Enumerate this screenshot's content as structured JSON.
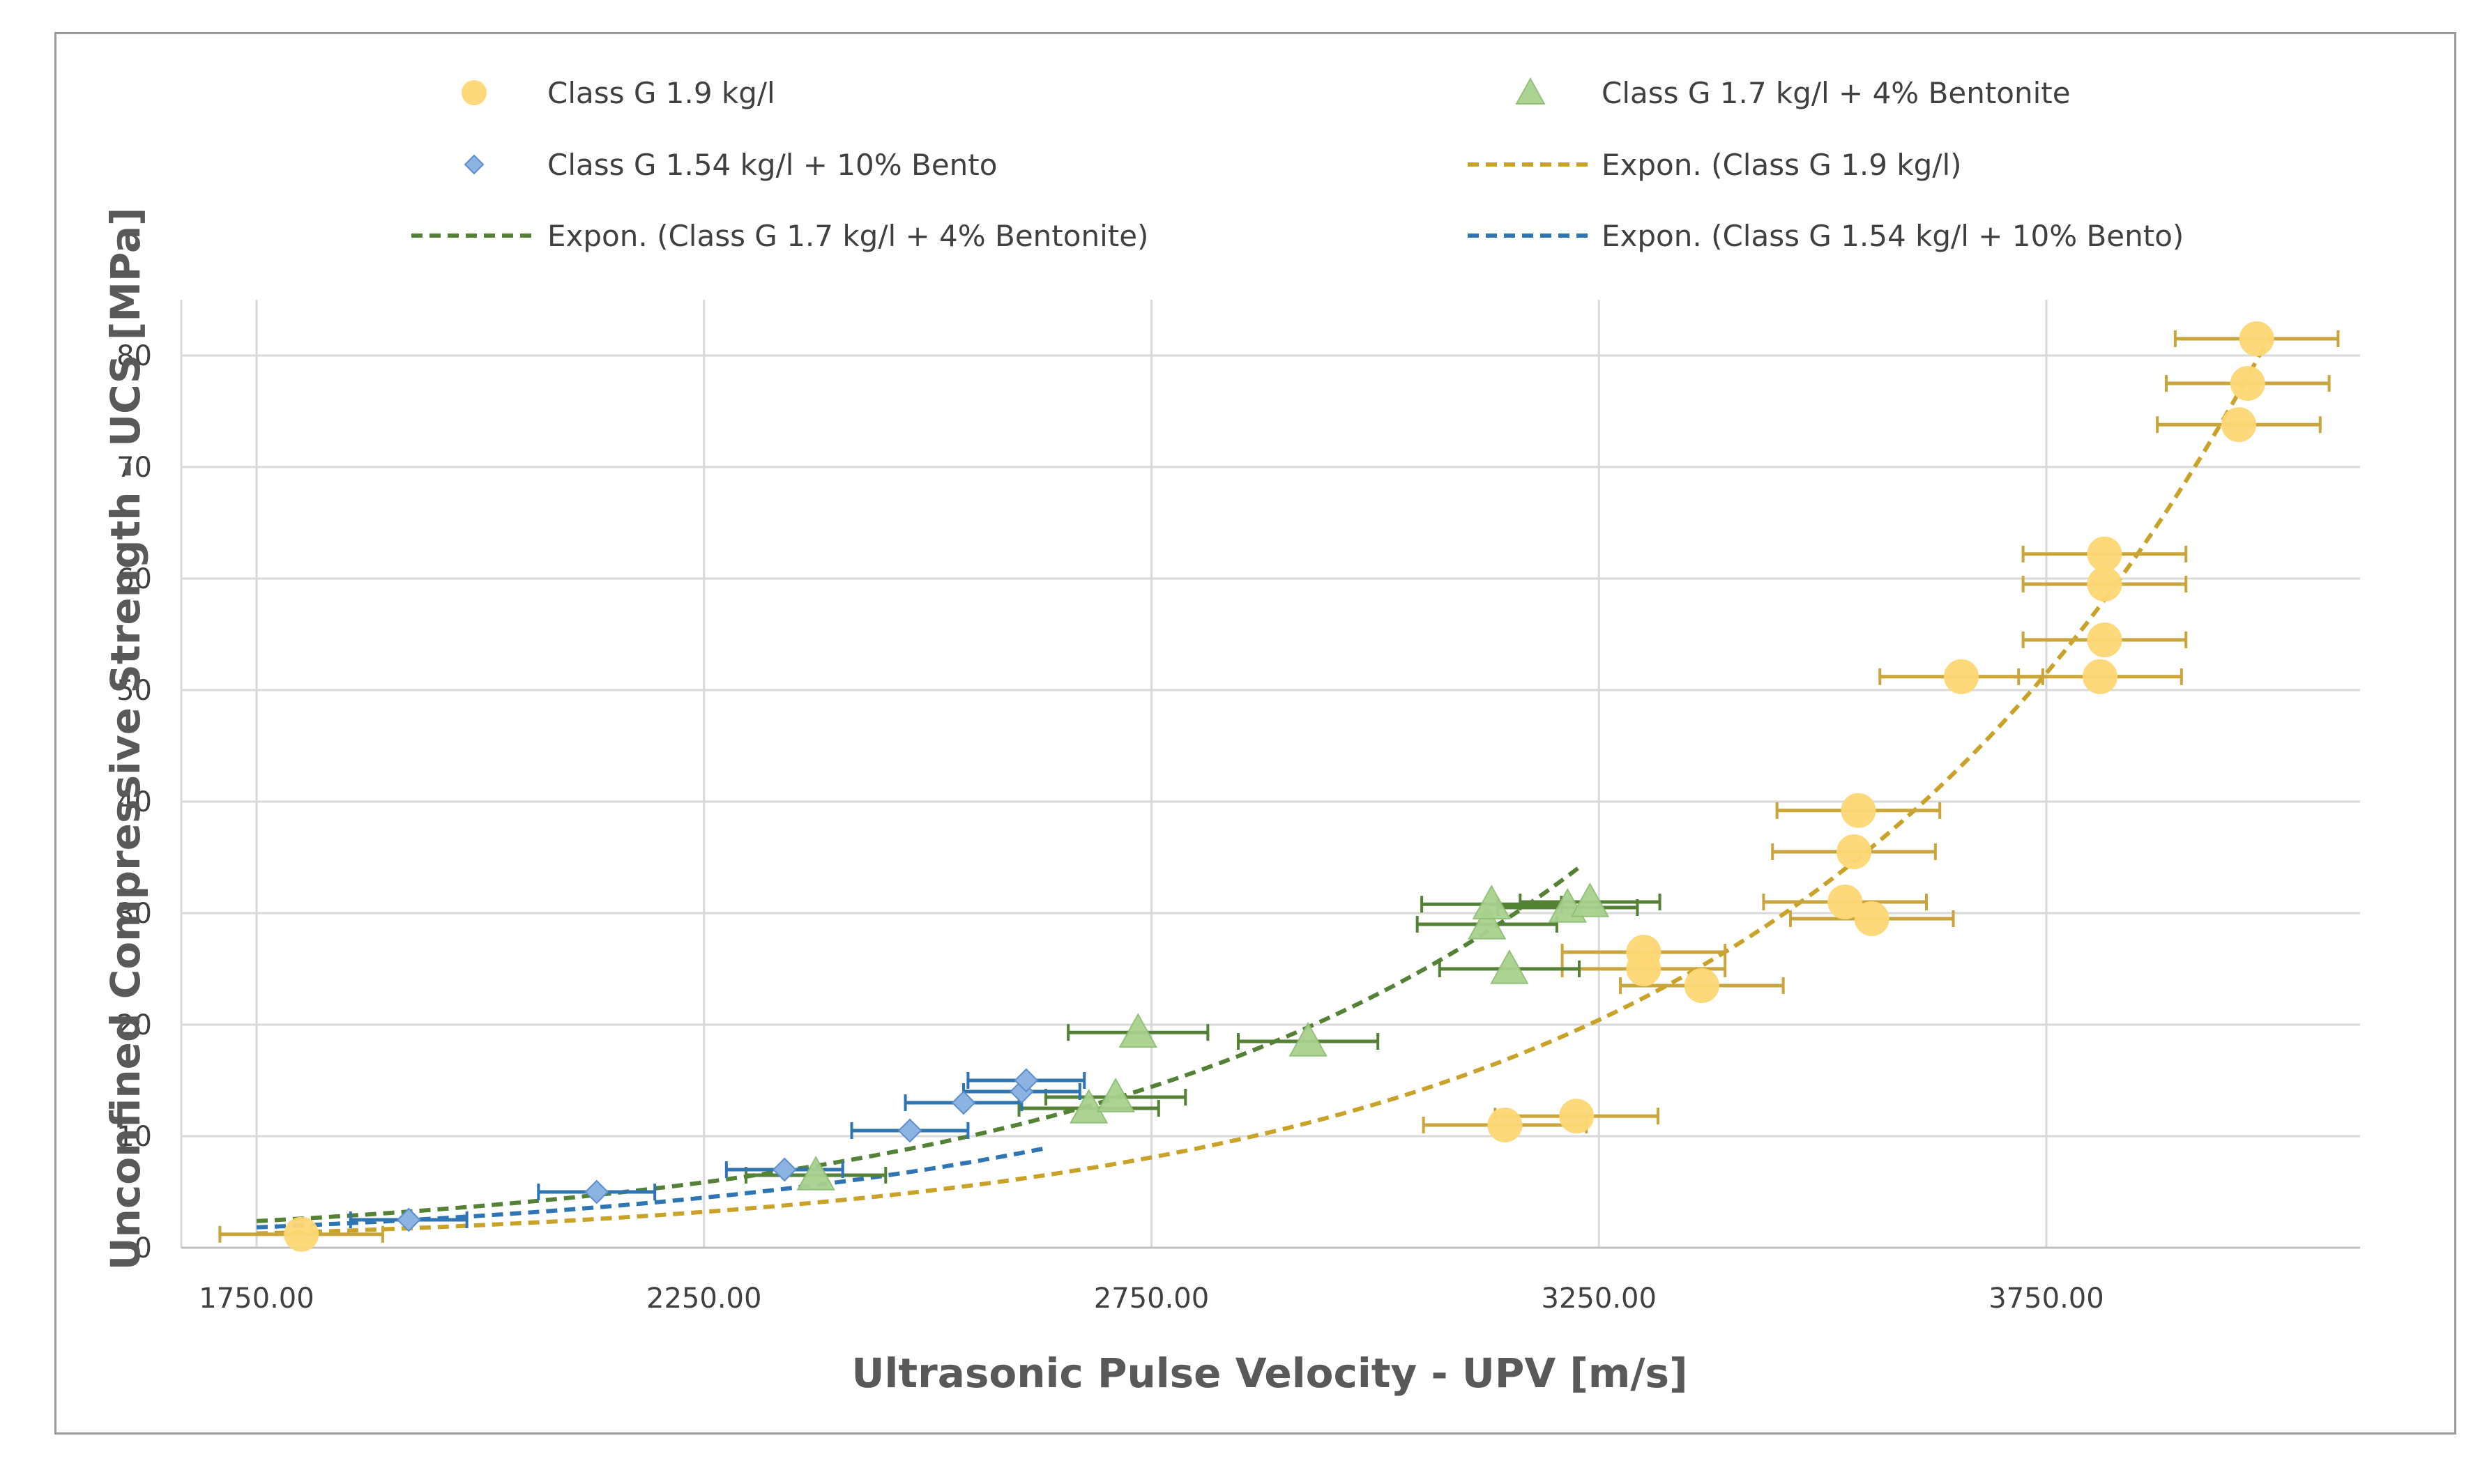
{
  "chart_data": {
    "type": "scatter",
    "title": "",
    "xlabel": "Ultrasonic Pulse Velocity - UPV [m/s]",
    "ylabel": "Unconfined Compressive Strength - UCS [MPa]",
    "xlim": [
      1750,
      4100
    ],
    "ylim": [
      0,
      86
    ],
    "grid": true,
    "x_ticks": [
      1750,
      2250,
      2750,
      3250,
      3750
    ],
    "x_tick_labels": [
      "1750.00",
      "2250.00",
      "2750.00",
      "3250.00",
      "3750.00"
    ],
    "y_ticks": [
      0,
      10,
      20,
      30,
      40,
      50,
      60,
      70,
      80
    ],
    "y_tick_labels": [
      "0",
      "10",
      "20",
      "30",
      "40",
      "50",
      "60",
      "70",
      "80"
    ],
    "legend_position": "top",
    "series": [
      {
        "name": "Class G 1.9 kg/l",
        "marker": "circle",
        "color": "#fdd874",
        "error_color": "#c9a53b",
        "x_error": 35,
        "points": [
          [
            1800,
            1.2
          ],
          [
            3145,
            11
          ],
          [
            3225,
            11.8
          ],
          [
            3300,
            26.5
          ],
          [
            3300,
            25
          ],
          [
            3365,
            23.5
          ],
          [
            3525,
            31
          ],
          [
            3555,
            29.5
          ],
          [
            3535,
            35.5
          ],
          [
            3540,
            39.2
          ],
          [
            3655,
            51.2
          ],
          [
            3810,
            51.2
          ],
          [
            3815,
            54.5
          ],
          [
            3815,
            59.5
          ],
          [
            3815,
            62.2
          ],
          [
            3965,
            73.8
          ],
          [
            3975,
            77.5
          ],
          [
            3985,
            81.5
          ]
        ]
      },
      {
        "name": "Class G 1.7 kg/l + 4% Bentonite",
        "marker": "triangle",
        "color": "#a9d18e",
        "error_color": "#548235",
        "x_error": 30,
        "points": [
          [
            2375,
            6.5
          ],
          [
            2680,
            12.5
          ],
          [
            2710,
            13.5
          ],
          [
            2735,
            19.3
          ],
          [
            2925,
            18.5
          ],
          [
            3125,
            29
          ],
          [
            3130,
            30.8
          ],
          [
            3150,
            25
          ],
          [
            3215,
            30.5
          ],
          [
            3240,
            31
          ]
        ]
      },
      {
        "name": "Class G 1.54 kg/l + 10% Bento",
        "marker": "diamond",
        "color": "#8db3e2",
        "error_color": "#2e75b6",
        "x_error": 25,
        "points": [
          [
            1920,
            2.5
          ],
          [
            2130,
            5
          ],
          [
            2340,
            7
          ],
          [
            2480,
            10.5
          ],
          [
            2540,
            13
          ],
          [
            2605,
            14
          ],
          [
            2610,
            15
          ]
        ]
      }
    ],
    "trendlines": [
      {
        "name": "Expon. (Class G 1.9 kg/l)",
        "type": "exponential",
        "a": 0.05,
        "b": 0.00185,
        "x_range": [
          1750,
          4000
        ],
        "color": "#c9a227"
      },
      {
        "name": "Expon. (Class G 1.7 kg/l + 4% Bentonite)",
        "type": "exponential",
        "a": 0.1022,
        "b": 0.0018,
        "x_range": [
          1750,
          3230
        ],
        "color": "#548235"
      },
      {
        "name": "Expon. (Class G 1.54 kg/l + 10% Bento)",
        "type": "exponential",
        "a": 0.0782,
        "b": 0.0018,
        "x_range": [
          1750,
          2630
        ],
        "color": "#2e75b6"
      }
    ],
    "legend": [
      {
        "label": "Class G 1.9 kg/l",
        "kind": "circle",
        "color": "#fdd874"
      },
      {
        "label": "Class G 1.7 kg/l + 4% Bentonite",
        "kind": "triangle",
        "color": "#a9d18e"
      },
      {
        "label": "Class G 1.54 kg/l + 10% Bento",
        "kind": "diamond",
        "color": "#8db3e2"
      },
      {
        "label": "Expon. (Class G 1.9 kg/l)",
        "kind": "dash",
        "color": "#c9a227"
      },
      {
        "label": "Expon. (Class G 1.7 kg/l + 4% Bentonite)",
        "kind": "dash",
        "color": "#548235"
      },
      {
        "label": "Expon. (Class G 1.54 kg/l + 10% Bento)",
        "kind": "dash",
        "color": "#2e75b6"
      }
    ]
  }
}
